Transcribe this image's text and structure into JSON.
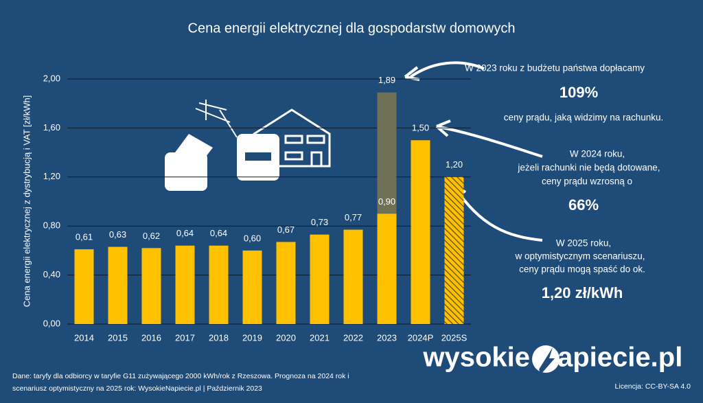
{
  "chart_data": {
    "type": "bar",
    "title": "Cena energii elektrycznej dla gospodarstw domowych",
    "y_label": "Cena energii elektrycznej z dystrybucją i VAT [zł/kWh]",
    "categories": [
      "2014",
      "2015",
      "2016",
      "2017",
      "2018",
      "2019",
      "2020",
      "2021",
      "2022",
      "2023",
      "2024P",
      "2025S"
    ],
    "series": [
      {
        "color": "#ffc000",
        "values": [
          0.61,
          0.63,
          0.62,
          0.64,
          0.64,
          0.6,
          0.67,
          0.73,
          0.77,
          0.9,
          1.5,
          1.2
        ],
        "value_labels": [
          "0,61",
          "0,63",
          "0,62",
          "0,64",
          "0,64",
          "0,60",
          "0,67",
          "0,73",
          "0,77",
          "0,90",
          "1,50",
          "1,20"
        ],
        "hatched": [
          false,
          false,
          false,
          false,
          false,
          false,
          false,
          false,
          false,
          false,
          false,
          true
        ]
      },
      {
        "color": "#6f7156",
        "values": [
          null,
          null,
          null,
          null,
          null,
          null,
          null,
          null,
          null,
          1.89,
          null,
          null
        ],
        "value_labels": [
          null,
          null,
          null,
          null,
          null,
          null,
          null,
          null,
          null,
          "1,89",
          null,
          null
        ]
      }
    ],
    "ylim": [
      0,
      2
    ],
    "yticks": [
      {
        "value": 0,
        "label": "0,00"
      },
      {
        "value": 0.4,
        "label": "0,40"
      },
      {
        "value": 0.8,
        "label": "0,80"
      },
      {
        "value": 1.2,
        "label": "1,20"
      },
      {
        "value": 1.6,
        "label": "1,60"
      },
      {
        "value": 2,
        "label": "2,00"
      }
    ],
    "grid": true,
    "annotations": [
      "W 2023 roku z budżetu państwa dopłacamy",
      "109%",
      "ceny prądu, jaką widzimy na rachunku.",
      "W 2024 roku,",
      "jeżeli rachunki nie będą dotowane,",
      "ceny prądu wzrosną o",
      "66%",
      "W 2025 roku,",
      "w optymistycznym scenariuszu,",
      "ceny prądu mogą spaść do ok.",
      "1,20 zł/kWh"
    ],
    "source": [
      "Dane: taryfy dla odbiorcy w taryfie G11 zużywającego 2000 kWh/rok z Rzeszowa. Prognoza na 2024 rok i",
      "scenariusz optymistyczny na 2025 rok: WysokieNapiecie.pl    |    Październik 2023"
    ],
    "license": "Licencja: CC-BY-SA 4.0",
    "logo": [
      "wysokie",
      "apiecie.pl"
    ]
  }
}
